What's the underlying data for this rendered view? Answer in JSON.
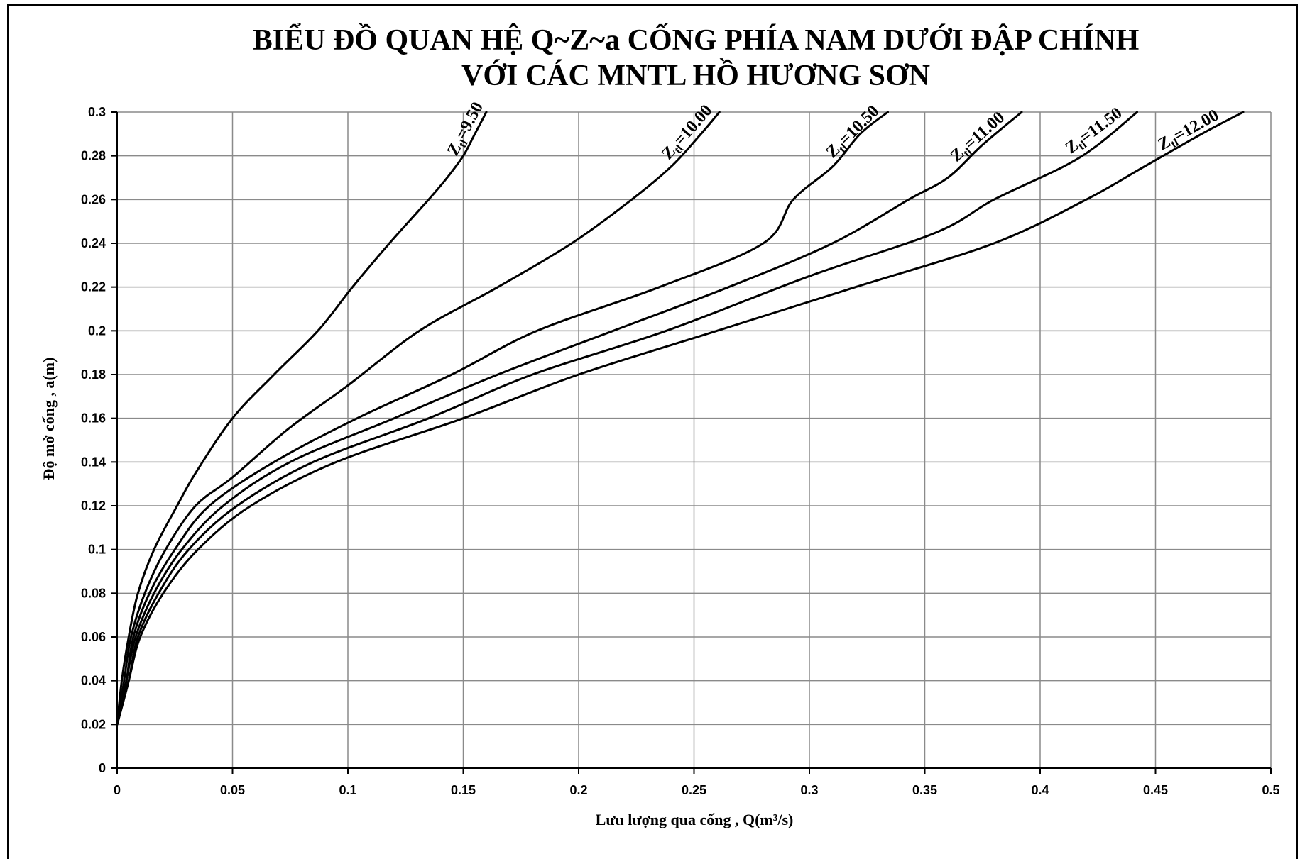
{
  "chart_data": {
    "type": "line",
    "title": [
      "BIỂU ĐỒ QUAN HỆ Q~Z~a CỐNG PHÍA NAM DƯỚI ĐẬP CHÍNH",
      "VỚI CÁC MNTL HỒ HƯƠNG SƠN"
    ],
    "xlabel": "Lưu lượng qua cống , Q(m³/s)",
    "ylabel": "Độ mở cống , a(m)",
    "xlim": [
      0,
      0.5
    ],
    "ylim": [
      0,
      0.3
    ],
    "xticks": [
      "0",
      "0.05",
      "0.1",
      "0.15",
      "0.2",
      "0.25",
      "0.3",
      "0.35",
      "0.4",
      "0.45",
      "0.5"
    ],
    "yticks": [
      "0",
      "0.02",
      "0.04",
      "0.06",
      "0.08",
      "0.1",
      "0.12",
      "0.14",
      "0.16",
      "0.18",
      "0.2",
      "0.22",
      "0.24",
      "0.26",
      "0.28",
      "0.3"
    ],
    "grid": true,
    "legend": "none",
    "series": [
      {
        "name": "Ztl=9.50",
        "label_sub": "tl",
        "label_value": "=9.50",
        "points": [
          [
            0,
            0.02
          ],
          [
            0.002,
            0.04
          ],
          [
            0.005,
            0.06
          ],
          [
            0.009,
            0.08
          ],
          [
            0.016,
            0.1
          ],
          [
            0.026,
            0.12
          ],
          [
            0.034,
            0.135
          ],
          [
            0.05,
            0.16
          ],
          [
            0.068,
            0.18
          ],
          [
            0.087,
            0.2
          ],
          [
            0.102,
            0.22
          ],
          [
            0.118,
            0.24
          ],
          [
            0.135,
            0.26
          ],
          [
            0.143,
            0.27
          ],
          [
            0.15,
            0.28
          ],
          [
            0.155,
            0.29
          ],
          [
            0.16,
            0.3
          ]
        ]
      },
      {
        "name": "Ztl=10.00",
        "label_sub": "tl",
        "label_value": "=10.00",
        "points": [
          [
            0,
            0.02
          ],
          [
            0.003,
            0.04
          ],
          [
            0.006,
            0.06
          ],
          [
            0.012,
            0.08
          ],
          [
            0.021,
            0.1
          ],
          [
            0.034,
            0.12
          ],
          [
            0.05,
            0.133
          ],
          [
            0.074,
            0.155
          ],
          [
            0.1,
            0.175
          ],
          [
            0.131,
            0.2
          ],
          [
            0.165,
            0.22
          ],
          [
            0.197,
            0.24
          ],
          [
            0.223,
            0.26
          ],
          [
            0.24,
            0.275
          ],
          [
            0.253,
            0.29
          ],
          [
            0.261,
            0.3
          ]
        ]
      },
      {
        "name": "Ztl=10.50",
        "label_sub": "tl",
        "label_value": "=10.50",
        "points": [
          [
            0,
            0.02
          ],
          [
            0.004,
            0.04
          ],
          [
            0.007,
            0.06
          ],
          [
            0.014,
            0.08
          ],
          [
            0.025,
            0.1
          ],
          [
            0.04,
            0.12
          ],
          [
            0.068,
            0.14
          ],
          [
            0.104,
            0.16
          ],
          [
            0.145,
            0.18
          ],
          [
            0.182,
            0.2
          ],
          [
            0.235,
            0.22
          ],
          [
            0.28,
            0.24
          ],
          [
            0.293,
            0.26
          ],
          [
            0.31,
            0.275
          ],
          [
            0.322,
            0.29
          ],
          [
            0.334,
            0.3
          ]
        ]
      },
      {
        "name": "Ztl=11.00",
        "label_sub": "tl",
        "label_value": "=11.00",
        "points": [
          [
            0,
            0.02
          ],
          [
            0.004,
            0.04
          ],
          [
            0.008,
            0.06
          ],
          [
            0.016,
            0.08
          ],
          [
            0.028,
            0.1
          ],
          [
            0.046,
            0.12
          ],
          [
            0.075,
            0.14
          ],
          [
            0.12,
            0.16
          ],
          [
            0.165,
            0.18
          ],
          [
            0.215,
            0.2
          ],
          [
            0.265,
            0.22
          ],
          [
            0.31,
            0.24
          ],
          [
            0.343,
            0.26
          ],
          [
            0.36,
            0.27
          ],
          [
            0.375,
            0.285
          ],
          [
            0.392,
            0.3
          ]
        ]
      },
      {
        "name": "Ztl=11.50",
        "label_sub": "tl",
        "label_value": "=11.50",
        "points": [
          [
            0,
            0.02
          ],
          [
            0.005,
            0.04
          ],
          [
            0.009,
            0.06
          ],
          [
            0.018,
            0.08
          ],
          [
            0.031,
            0.1
          ],
          [
            0.052,
            0.12
          ],
          [
            0.085,
            0.14
          ],
          [
            0.135,
            0.16
          ],
          [
            0.18,
            0.18
          ],
          [
            0.238,
            0.2
          ],
          [
            0.3,
            0.225
          ],
          [
            0.355,
            0.245
          ],
          [
            0.38,
            0.26
          ],
          [
            0.41,
            0.275
          ],
          [
            0.425,
            0.285
          ],
          [
            0.442,
            0.3
          ]
        ]
      },
      {
        "name": "Ztl=12.00",
        "label_sub": "tl",
        "label_value": "=12.00",
        "points": [
          [
            0,
            0.02
          ],
          [
            0.005,
            0.04
          ],
          [
            0.01,
            0.06
          ],
          [
            0.02,
            0.08
          ],
          [
            0.035,
            0.1
          ],
          [
            0.058,
            0.12
          ],
          [
            0.095,
            0.14
          ],
          [
            0.15,
            0.16
          ],
          [
            0.2,
            0.18
          ],
          [
            0.26,
            0.2
          ],
          [
            0.32,
            0.22
          ],
          [
            0.38,
            0.24
          ],
          [
            0.42,
            0.26
          ],
          [
            0.445,
            0.275
          ],
          [
            0.47,
            0.29
          ],
          [
            0.488,
            0.3
          ]
        ]
      }
    ]
  }
}
